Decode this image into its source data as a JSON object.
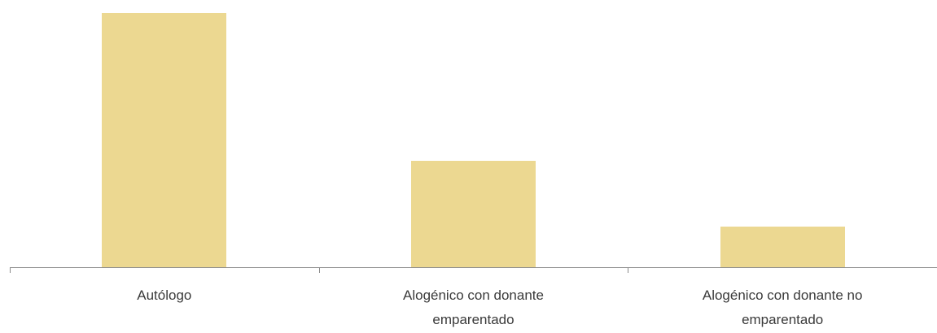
{
  "chart_data": {
    "type": "bar",
    "categories": [
      [
        "Autólogo"
      ],
      [
        "Alogénico con donante",
        "emparentado"
      ],
      [
        "Alogénico con donante no",
        "emparentado"
      ]
    ],
    "values": [
      100,
      42,
      16
    ],
    "ylim": [
      0,
      100
    ],
    "grid": false,
    "bar_color": "#ecd891",
    "axis_color": "#8c8c8c"
  }
}
